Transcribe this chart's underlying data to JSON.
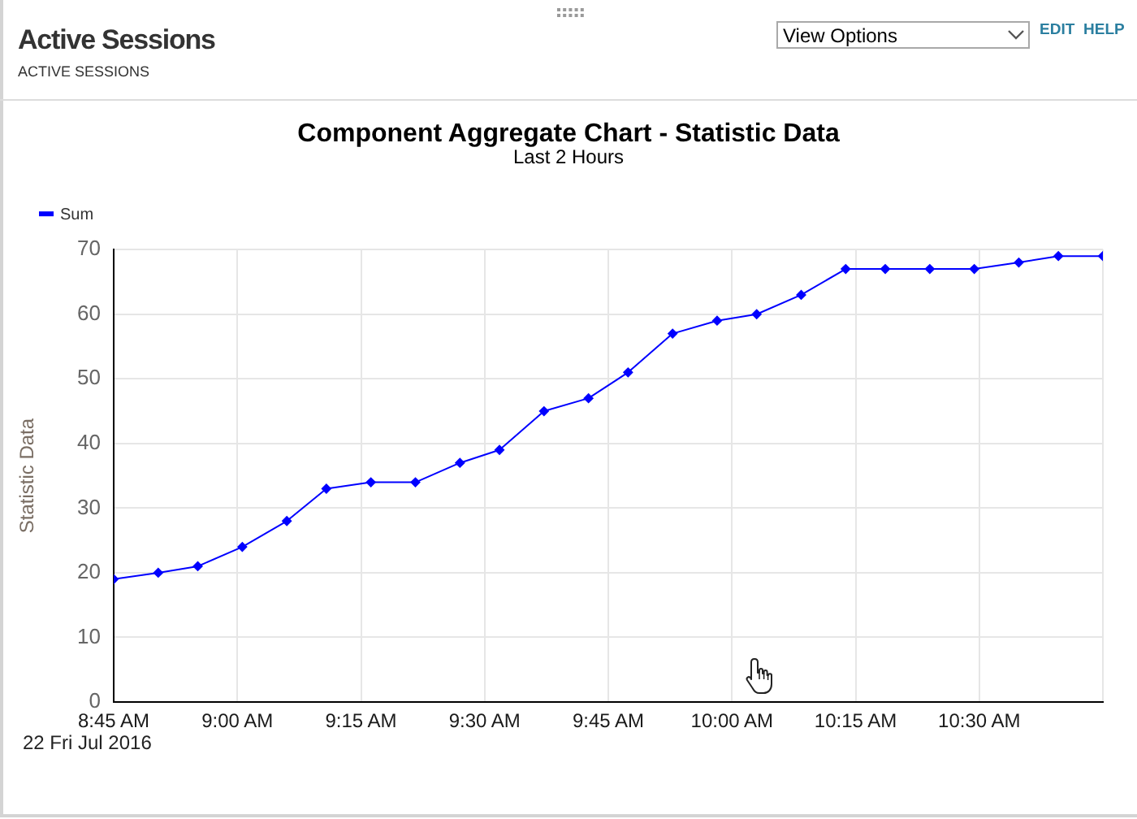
{
  "chart_data": {
    "type": "line",
    "title": "Component Aggregate Chart - Statistic Data",
    "subtitle": "Last 2 Hours",
    "ylabel": "Statistic Data",
    "x": [
      8.75,
      8.84,
      8.92,
      9.01,
      9.1,
      9.18,
      9.27,
      9.36,
      9.45,
      9.53,
      9.62,
      9.71,
      9.79,
      9.88,
      9.97,
      10.05,
      10.14,
      10.23,
      10.31,
      10.4,
      10.49,
      10.58,
      10.66,
      10.75
    ],
    "series": [
      {
        "name": "Sum",
        "color": "#0000ff",
        "values": [
          19,
          20,
          21,
          24,
          28,
          33,
          34,
          34,
          37,
          39,
          45,
          47,
          51,
          57,
          59,
          60,
          63,
          67,
          67,
          67,
          67,
          68,
          69,
          69
        ]
      }
    ],
    "xlim": [
      8.75,
      10.75
    ],
    "xticks": [
      {
        "value": 8.75,
        "label": "8:45 AM"
      },
      {
        "value": 9,
        "label": "9:00 AM"
      },
      {
        "value": 9.25,
        "label": "9:15 AM"
      },
      {
        "value": 9.5,
        "label": "9:30 AM"
      },
      {
        "value": 9.75,
        "label": "9:45 AM"
      },
      {
        "value": 10,
        "label": "10:00 AM"
      },
      {
        "value": 10.25,
        "label": "10:15 AM"
      },
      {
        "value": 10.5,
        "label": "10:30 AM"
      },
      {
        "value": 10.75,
        "label": null
      }
    ],
    "ylim": [
      0,
      70
    ],
    "yticks": [
      0,
      10,
      20,
      30,
      40,
      50,
      60,
      70
    ],
    "grid": true,
    "legend": "top left",
    "marker": "diamond",
    "line_style": "solid",
    "annotations": [
      "22 Fri Jul 2016",
      "Active Sessions",
      "ACTIVE SESSIONS",
      "View Options",
      "EDIT",
      "HELP"
    ]
  }
}
